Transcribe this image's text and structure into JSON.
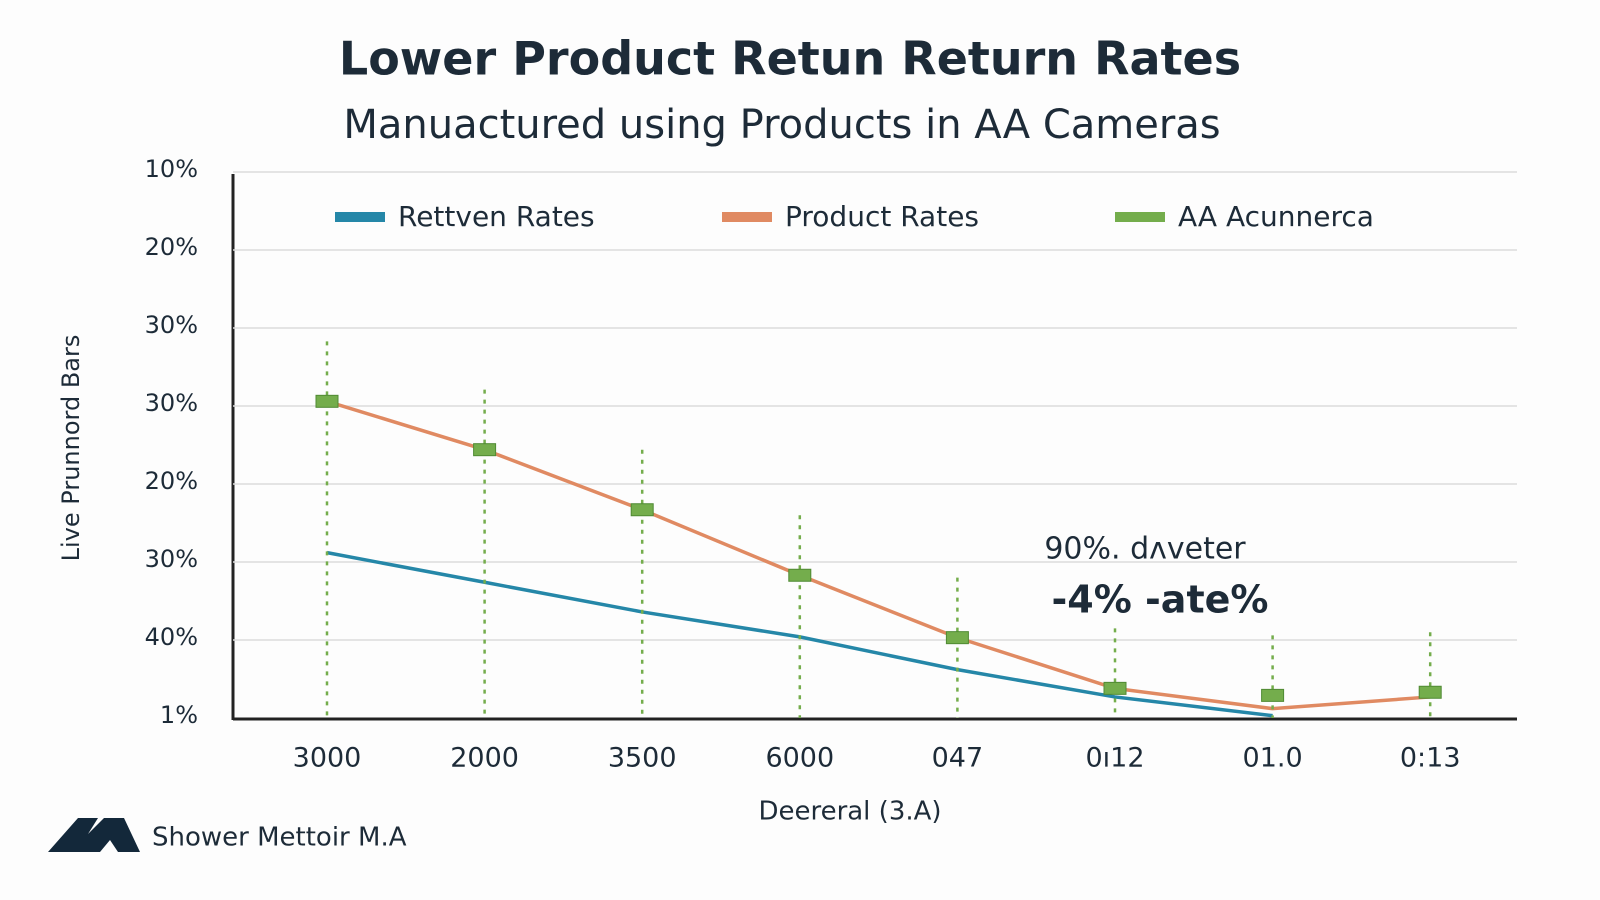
{
  "chart_data": {
    "type": "line",
    "title": "Lower Product Retun Return Rates",
    "subtitle": "Manuactured using Products in AA Cameras",
    "y_label": "Live Prunnord Bars",
    "x_label": "Deereral (3.A)",
    "categories": [
      "3000",
      "2000",
      "3500",
      "6000",
      "047",
      "0ı12",
      "01.0",
      "0:13"
    ],
    "series": [
      {
        "name": "Rettven Rates",
        "color": "#2587a8",
        "values": [
          2.12,
          1.74,
          1.36,
          1.04,
          0.62,
          0.27,
          0.03,
          null
        ]
      },
      {
        "name": "Product Rates",
        "color": "#e08a62",
        "values": [
          4.06,
          3.44,
          2.67,
          1.83,
          1.03,
          0.38,
          0.12,
          0.27
        ]
      },
      {
        "name": "AA Acunnerca",
        "color": "#74ad4c",
        "values": [
          4.06,
          3.44,
          2.67,
          1.83,
          1.03,
          0.38,
          0.29,
          0.33
        ]
      }
    ],
    "ylim": [
      0,
      7
    ],
    "yticks": [
      {
        "value": 0,
        "label": "1%"
      },
      {
        "value": 1,
        "label": "40%"
      },
      {
        "value": 2,
        "label": "30%"
      },
      {
        "value": 3,
        "label": "20%"
      },
      {
        "value": 4,
        "label": "30%"
      },
      {
        "value": 5,
        "label": "30%"
      },
      {
        "value": 6,
        "label": "20%"
      },
      {
        "value": 7,
        "label": "10%"
      }
    ],
    "grid": true,
    "annotations": [
      "90%. dᴧveter",
      "-4% -ate%"
    ],
    "footer": "Shower Mettoir M.A"
  }
}
